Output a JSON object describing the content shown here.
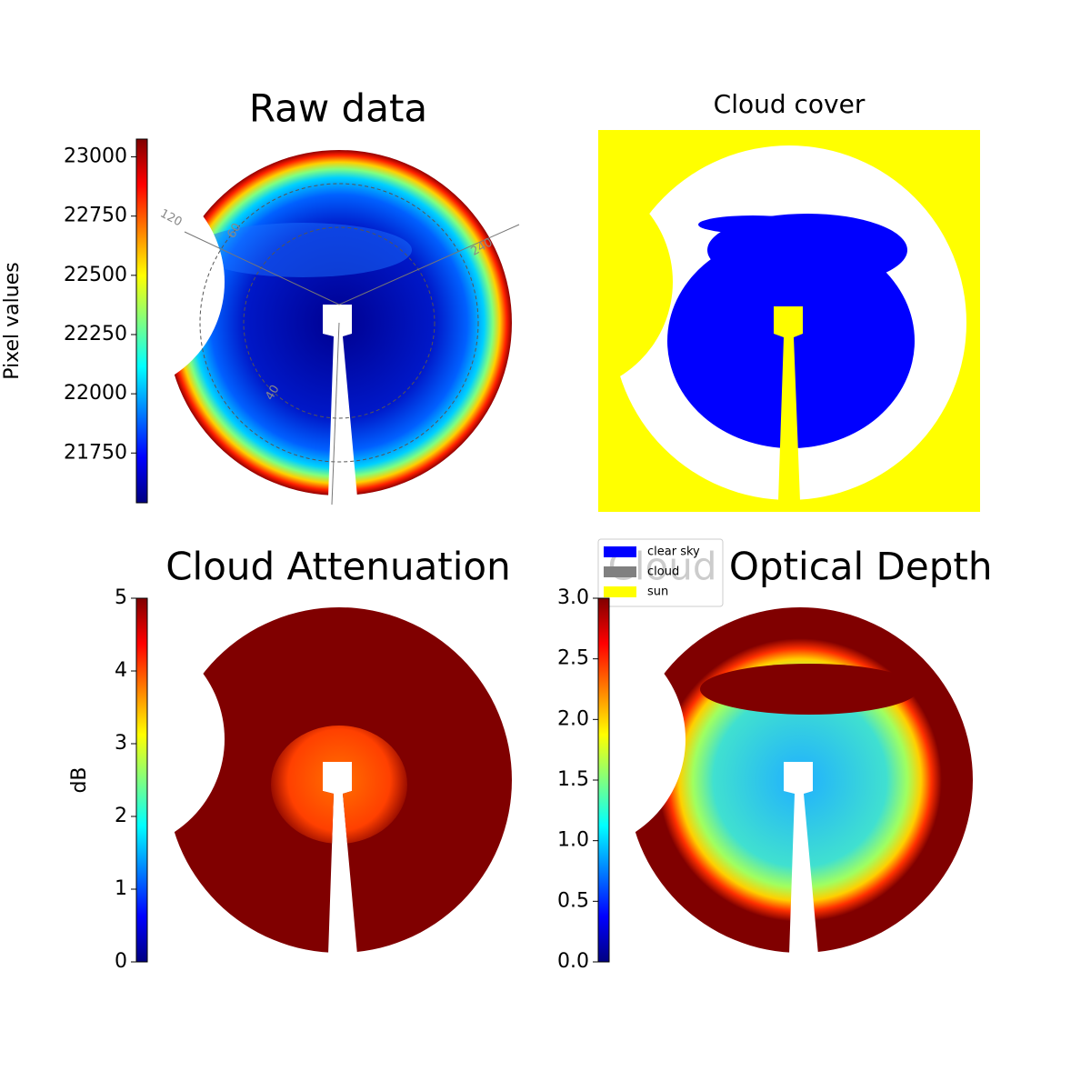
{
  "chart_data": [
    {
      "type": "image",
      "title": "Raw data",
      "annotations": [
        "120",
        "60",
        "240",
        "40"
      ],
      "colorbar": {
        "label": "Pixel values",
        "colormap": "jet",
        "lim": [
          21540,
          23075
        ],
        "ticks": [
          21750,
          22000,
          22250,
          22500,
          22750,
          23000
        ]
      }
    },
    {
      "type": "image",
      "title": "Cloud cover",
      "series": [
        {
          "name": "clear sky",
          "color": "#0000ff"
        },
        {
          "name": "cloud",
          "color": "#808080"
        },
        {
          "name": "sun",
          "color": "#ffff00"
        }
      ]
    },
    {
      "type": "image",
      "title": "Cloud Attenuation",
      "colorbar": {
        "label": "dB",
        "colormap": "jet",
        "lim": [
          0,
          5
        ],
        "ticks": [
          0,
          1,
          2,
          3,
          4,
          5
        ]
      }
    },
    {
      "type": "image",
      "title": "Cloud Optical Depth",
      "colorbar": {
        "colormap": "jet",
        "lim": [
          0,
          3
        ],
        "ticks": [
          {
            "value": 0,
            "label": "0.0"
          },
          {
            "value": 0.5,
            "label": "0.5"
          },
          {
            "value": 1,
            "label": "1.0"
          },
          {
            "value": 1.5,
            "label": "1.5"
          },
          {
            "value": 2,
            "label": "2.0"
          },
          {
            "value": 2.5,
            "label": "2.5"
          },
          {
            "value": 3,
            "label": "3.0"
          }
        ]
      }
    }
  ]
}
